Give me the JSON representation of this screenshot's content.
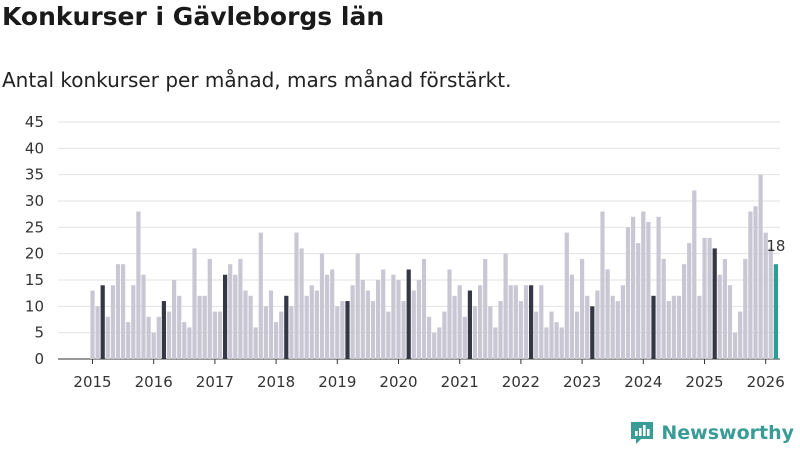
{
  "chart_data": {
    "type": "bar",
    "title": "Konkurser i Gävleborgs län",
    "subtitle": "Antal konkurser per månad, mars månad förstärkt.",
    "xlabel": "",
    "ylabel": "",
    "ylim": [
      0,
      45
    ],
    "yticks": [
      0,
      5,
      10,
      15,
      20,
      25,
      30,
      35,
      40,
      45
    ],
    "grid": true,
    "year_labels": [
      "2015",
      "2016",
      "2017",
      "2018",
      "2019",
      "2020",
      "2021",
      "2022",
      "2023",
      "2024",
      "2025",
      "2026"
    ],
    "start": "2015-01",
    "values": [
      13,
      10,
      14,
      8,
      14,
      18,
      18,
      7,
      14,
      28,
      16,
      8,
      5,
      8,
      11,
      9,
      15,
      12,
      7,
      6,
      21,
      12,
      12,
      19,
      9,
      9,
      16,
      18,
      16,
      19,
      13,
      12,
      6,
      24,
      10,
      13,
      7,
      9,
      12,
      10,
      24,
      21,
      12,
      14,
      13,
      20,
      16,
      17,
      10,
      11,
      11,
      14,
      20,
      15,
      13,
      11,
      15,
      17,
      9,
      16,
      15,
      11,
      17,
      13,
      15,
      19,
      8,
      5,
      6,
      9,
      17,
      12,
      14,
      8,
      13,
      10,
      14,
      19,
      10,
      6,
      11,
      20,
      14,
      14,
      11,
      14,
      14,
      9,
      14,
      6,
      9,
      7,
      6,
      24,
      16,
      9,
      19,
      12,
      10,
      13,
      28,
      17,
      12,
      11,
      14,
      25,
      27,
      22,
      28,
      26,
      12,
      27,
      19,
      11,
      12,
      12,
      18,
      22,
      32,
      12,
      23,
      23,
      21,
      16,
      19,
      14,
      5,
      9,
      19,
      28,
      29,
      35,
      24,
      21,
      18
    ],
    "highlight_month": "March",
    "colors": {
      "bar": "#c8c7d3",
      "highlight": "#363744",
      "latest": "#2a9e92"
    },
    "latest_label": "18"
  },
  "branding": {
    "name": "Newsworthy",
    "icon": "newsworthy-logo-icon",
    "color": "#3a9c96"
  }
}
